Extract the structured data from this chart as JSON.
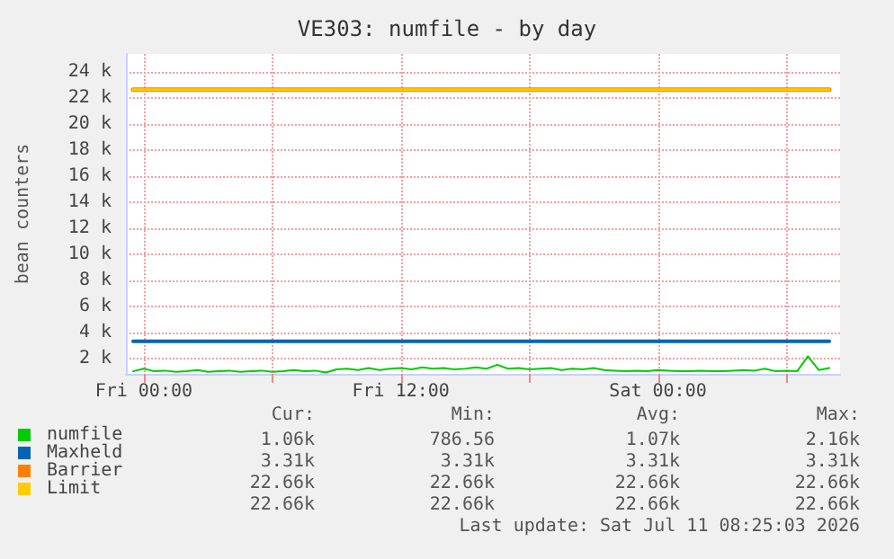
{
  "chart_data": {
    "type": "line",
    "title": "VE303: numfile - by day",
    "ylabel": "bean counters",
    "xlim": [
      "2026-07-09T23:10",
      "2026-07-11T08:30"
    ],
    "xticks": [
      {
        "value": "2026-07-10T00:00",
        "label": "Fri 00:00"
      },
      {
        "value": "2026-07-10T06:00",
        "label": null
      },
      {
        "value": "2026-07-10T12:00",
        "label": "Fri 12:00"
      },
      {
        "value": "2026-07-10T18:00",
        "label": null
      },
      {
        "value": "2026-07-11T00:00",
        "label": "Sat 00:00"
      },
      {
        "value": "2026-07-11T06:00",
        "label": null
      }
    ],
    "ylim": [
      800,
      25400
    ],
    "yticks": [
      {
        "value": 2000,
        "label": "2 k"
      },
      {
        "value": 4000,
        "label": "4 k"
      },
      {
        "value": 6000,
        "label": "6 k"
      },
      {
        "value": 8000,
        "label": "8 k"
      },
      {
        "value": 10000,
        "label": "10 k"
      },
      {
        "value": 12000,
        "label": "12 k"
      },
      {
        "value": 14000,
        "label": "14 k"
      },
      {
        "value": 16000,
        "label": "16 k"
      },
      {
        "value": 18000,
        "label": "18 k"
      },
      {
        "value": 20000,
        "label": "20 k"
      },
      {
        "value": 22000,
        "label": "22 k"
      },
      {
        "value": 24000,
        "label": "24 k"
      }
    ],
    "x": [
      "2026-07-09T23:30",
      "2026-07-10T00:00",
      "2026-07-10T00:30",
      "2026-07-10T01:00",
      "2026-07-10T01:30",
      "2026-07-10T02:00",
      "2026-07-10T02:30",
      "2026-07-10T03:00",
      "2026-07-10T03:30",
      "2026-07-10T04:00",
      "2026-07-10T04:30",
      "2026-07-10T05:00",
      "2026-07-10T05:30",
      "2026-07-10T06:00",
      "2026-07-10T06:30",
      "2026-07-10T07:00",
      "2026-07-10T07:30",
      "2026-07-10T08:00",
      "2026-07-10T08:30",
      "2026-07-10T09:00",
      "2026-07-10T09:30",
      "2026-07-10T10:00",
      "2026-07-10T10:30",
      "2026-07-10T11:00",
      "2026-07-10T11:30",
      "2026-07-10T12:00",
      "2026-07-10T12:30",
      "2026-07-10T13:00",
      "2026-07-10T13:30",
      "2026-07-10T14:00",
      "2026-07-10T14:30",
      "2026-07-10T15:00",
      "2026-07-10T15:30",
      "2026-07-10T16:00",
      "2026-07-10T16:30",
      "2026-07-10T17:00",
      "2026-07-10T17:30",
      "2026-07-10T18:00",
      "2026-07-10T18:30",
      "2026-07-10T19:00",
      "2026-07-10T19:30",
      "2026-07-10T20:00",
      "2026-07-10T20:30",
      "2026-07-10T21:00",
      "2026-07-10T21:30",
      "2026-07-10T22:00",
      "2026-07-10T22:30",
      "2026-07-10T23:00",
      "2026-07-10T23:30",
      "2026-07-11T00:00",
      "2026-07-11T00:30",
      "2026-07-11T01:00",
      "2026-07-11T01:30",
      "2026-07-11T02:00",
      "2026-07-11T02:30",
      "2026-07-11T03:00",
      "2026-07-11T03:30",
      "2026-07-11T04:00",
      "2026-07-11T04:30",
      "2026-07-11T05:00",
      "2026-07-11T05:30",
      "2026-07-11T06:00",
      "2026-07-11T06:30",
      "2026-07-11T07:00",
      "2026-07-11T07:30",
      "2026-07-11T08:00"
    ],
    "series": [
      {
        "name": "numfile",
        "color": "#00cc00",
        "values": [
          1000,
          1200,
          1000,
          1050,
          950,
          1000,
          1100,
          950,
          1000,
          1050,
          950,
          1000,
          1050,
          950,
          1000,
          1100,
          1000,
          1050,
          900,
          1150,
          1200,
          1100,
          1250,
          1100,
          1200,
          1250,
          1150,
          1300,
          1200,
          1250,
          1150,
          1200,
          1300,
          1200,
          1500,
          1200,
          1250,
          1150,
          1200,
          1250,
          1100,
          1200,
          1150,
          1250,
          1100,
          1050,
          1000,
          1050,
          1000,
          1100,
          1050,
          1000,
          1000,
          1050,
          1000,
          1000,
          1050,
          1100,
          1050,
          1200,
          1000,
          1050,
          1000,
          2160,
          1100,
          1250
        ]
      },
      {
        "name": "Maxheld",
        "color": "#0066b3",
        "values": [
          3310,
          3310,
          3310,
          3310,
          3310,
          3310,
          3310,
          3310,
          3310,
          3310,
          3310,
          3310,
          3310,
          3310,
          3310,
          3310,
          3310,
          3310,
          3310,
          3310,
          3310,
          3310,
          3310,
          3310,
          3310,
          3310,
          3310,
          3310,
          3310,
          3310,
          3310,
          3310,
          3310,
          3310,
          3310,
          3310,
          3310,
          3310,
          3310,
          3310,
          3310,
          3310,
          3310,
          3310,
          3310,
          3310,
          3310,
          3310,
          3310,
          3310,
          3310,
          3310,
          3310,
          3310,
          3310,
          3310,
          3310,
          3310,
          3310,
          3310,
          3310,
          3310,
          3310,
          3310,
          3310,
          3310
        ]
      },
      {
        "name": "Barrier",
        "color": "#ff8000",
        "values": [
          22660,
          22660,
          22660,
          22660,
          22660,
          22660,
          22660,
          22660,
          22660,
          22660,
          22660,
          22660,
          22660,
          22660,
          22660,
          22660,
          22660,
          22660,
          22660,
          22660,
          22660,
          22660,
          22660,
          22660,
          22660,
          22660,
          22660,
          22660,
          22660,
          22660,
          22660,
          22660,
          22660,
          22660,
          22660,
          22660,
          22660,
          22660,
          22660,
          22660,
          22660,
          22660,
          22660,
          22660,
          22660,
          22660,
          22660,
          22660,
          22660,
          22660,
          22660,
          22660,
          22660,
          22660,
          22660,
          22660,
          22660,
          22660,
          22660,
          22660,
          22660,
          22660,
          22660,
          22660,
          22660,
          22660
        ]
      },
      {
        "name": "Limit",
        "color": "#ffcc00",
        "values": [
          22660,
          22660,
          22660,
          22660,
          22660,
          22660,
          22660,
          22660,
          22660,
          22660,
          22660,
          22660,
          22660,
          22660,
          22660,
          22660,
          22660,
          22660,
          22660,
          22660,
          22660,
          22660,
          22660,
          22660,
          22660,
          22660,
          22660,
          22660,
          22660,
          22660,
          22660,
          22660,
          22660,
          22660,
          22660,
          22660,
          22660,
          22660,
          22660,
          22660,
          22660,
          22660,
          22660,
          22660,
          22660,
          22660,
          22660,
          22660,
          22660,
          22660,
          22660,
          22660,
          22660,
          22660,
          22660,
          22660,
          22660,
          22660,
          22660,
          22660,
          22660,
          22660,
          22660,
          22660,
          22660,
          22660
        ]
      }
    ],
    "annotations": [
      "Cur:",
      "Min:",
      "Avg:",
      "Max:",
      "1.06k",
      "786.56",
      "1.07k",
      "2.16k",
      "3.31k",
      "3.31k",
      "3.31k",
      "3.31k",
      "22.66k",
      "22.66k",
      "22.66k",
      "22.66k",
      "22.66k",
      "22.66k",
      "22.66k",
      "22.66k",
      "Last update: Sat Jul 11 08:25:03 2026"
    ],
    "grid": true,
    "legend": "bottom left",
    "marker": "none",
    "line_style": "solid"
  }
}
